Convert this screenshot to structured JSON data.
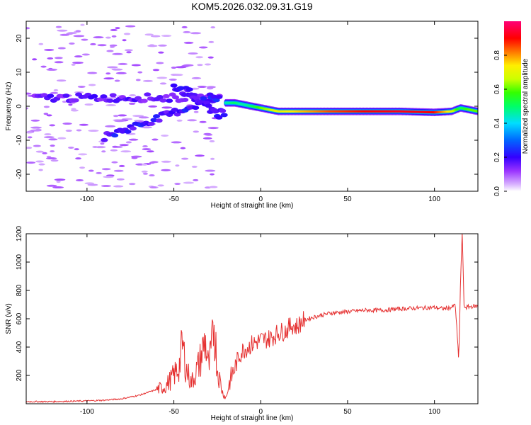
{
  "chart_data": [
    {
      "type": "heatmap",
      "title": "KOM5.2026.032.09.31.G19",
      "xlabel": "Height of straight line (km)",
      "ylabel": "Frequency (Hz)",
      "xlim": [
        -135,
        125
      ],
      "ylim": [
        -25,
        25
      ],
      "xticks": [
        -100,
        -50,
        0,
        50,
        100
      ],
      "xtick_labels": [
        "-100",
        "-50",
        "0",
        "50",
        "100"
      ],
      "yticks": [
        -20,
        -10,
        0,
        10,
        20
      ],
      "ytick_labels": [
        "-20",
        "-10",
        "0",
        "10",
        "20"
      ],
      "colorbar": {
        "label": "Normalized spectral amplitude",
        "range": [
          0,
          1
        ],
        "ticks": [
          0.0,
          0.2,
          0.4,
          0.6,
          0.8
        ],
        "tick_labels": [
          "0.0",
          "0.2",
          "0.4",
          "0.6",
          "0.8"
        ]
      },
      "ridge": {
        "x": [
          -20,
          -15,
          -10,
          -5,
          0,
          5,
          10,
          20,
          40,
          60,
          80,
          100,
          110,
          115,
          120,
          125
        ],
        "freq": [
          1.0,
          1.0,
          0.5,
          0.0,
          -0.5,
          -1.0,
          -1.5,
          -1.5,
          -1.5,
          -1.5,
          -1.5,
          -1.8,
          -1.5,
          -0.5,
          -1.0,
          -1.5
        ],
        "amplitude": [
          0.45,
          0.5,
          0.45,
          0.5,
          0.6,
          0.65,
          0.7,
          0.75,
          0.85,
          0.9,
          0.92,
          0.9,
          0.7,
          0.5,
          0.6,
          0.6
        ]
      }
    },
    {
      "type": "line",
      "xlabel": "Height of straight line (km)",
      "ylabel": "SNR (v/v)",
      "xlim": [
        -135,
        125
      ],
      "ylim": [
        0,
        1200
      ],
      "xticks": [
        -100,
        -50,
        0,
        50,
        100
      ],
      "xtick_labels": [
        "-100",
        "-50",
        "0",
        "50",
        "100"
      ],
      "yticks": [
        200,
        400,
        600,
        800,
        1000,
        1200
      ],
      "ytick_labels": [
        "200",
        "400",
        "600",
        "800",
        "1000",
        "1200"
      ],
      "series": [
        {
          "name": "SNR",
          "color": "#e53030",
          "x": [
            -135,
            -120,
            -100,
            -90,
            -80,
            -70,
            -60,
            -55,
            -50,
            -47,
            -45,
            -43,
            -40,
            -38,
            -35,
            -32,
            -30,
            -28,
            -27,
            -25,
            -22,
            -20,
            -18,
            -15,
            -12,
            -10,
            -5,
            0,
            5,
            10,
            15,
            18,
            20,
            25,
            30,
            40,
            50,
            60,
            70,
            80,
            90,
            100,
            105,
            110,
            112,
            114,
            115,
            116,
            117,
            118,
            120,
            125
          ],
          "y": [
            15,
            15,
            20,
            25,
            35,
            60,
            100,
            120,
            200,
            260,
            420,
            250,
            150,
            200,
            300,
            450,
            250,
            400,
            600,
            250,
            80,
            40,
            150,
            250,
            350,
            380,
            420,
            450,
            460,
            500,
            520,
            560,
            540,
            590,
            610,
            640,
            650,
            660,
            660,
            670,
            675,
            680,
            670,
            680,
            700,
            300,
            870,
            1210,
            690,
            680,
            685,
            690
          ]
        }
      ]
    }
  ]
}
